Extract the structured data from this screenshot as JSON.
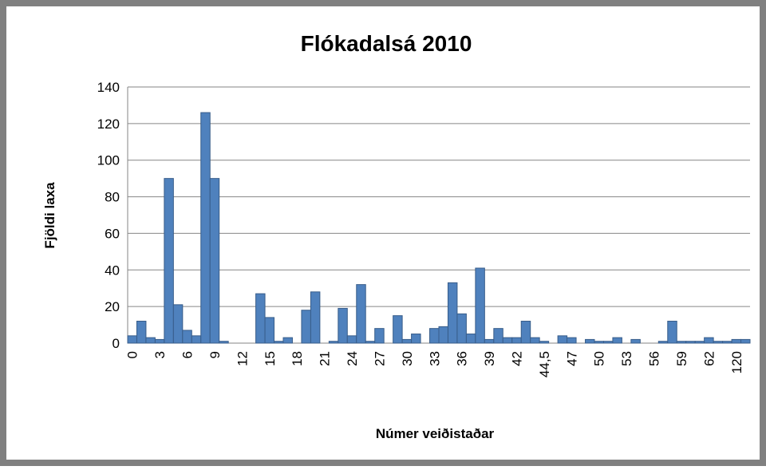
{
  "chart_data": {
    "type": "bar",
    "title": "Flókadalsá 2010",
    "x_label": "Númer veiðistaðar",
    "y_label": "Fjöldi laxa",
    "categories": [
      "0",
      null,
      null,
      "3",
      null,
      null,
      "6",
      null,
      null,
      "9",
      null,
      null,
      "12",
      null,
      null,
      "15",
      null,
      null,
      "18",
      null,
      null,
      "21",
      null,
      null,
      "24",
      null,
      null,
      "27",
      null,
      null,
      "30",
      null,
      null,
      "33",
      null,
      null,
      "36",
      null,
      null,
      "39",
      null,
      null,
      "42",
      null,
      null,
      "44,5",
      null,
      null,
      "47",
      null,
      null,
      "50",
      null,
      null,
      "53",
      null,
      null,
      "56",
      null,
      null,
      "59",
      null,
      null,
      "62",
      null,
      null,
      "120",
      null
    ],
    "values": [
      4,
      12,
      3,
      2,
      90,
      21,
      7,
      4,
      126,
      90,
      1,
      0,
      0,
      0,
      27,
      14,
      1,
      3,
      0,
      18,
      28,
      0,
      1,
      19,
      4,
      32,
      1,
      8,
      0,
      15,
      2,
      5,
      0,
      8,
      9,
      33,
      16,
      5,
      41,
      2,
      8,
      3,
      3,
      12,
      3,
      1,
      0,
      4,
      3,
      0,
      2,
      1,
      1,
      3,
      0,
      2,
      0,
      0,
      1,
      12,
      1,
      1,
      1,
      3,
      1,
      1,
      2,
      2
    ],
    "color": "#4f81bd",
    "ylim": [
      0,
      140
    ],
    "yticks": [
      0,
      20,
      40,
      60,
      80,
      100,
      120,
      140
    ],
    "grid": true
  }
}
